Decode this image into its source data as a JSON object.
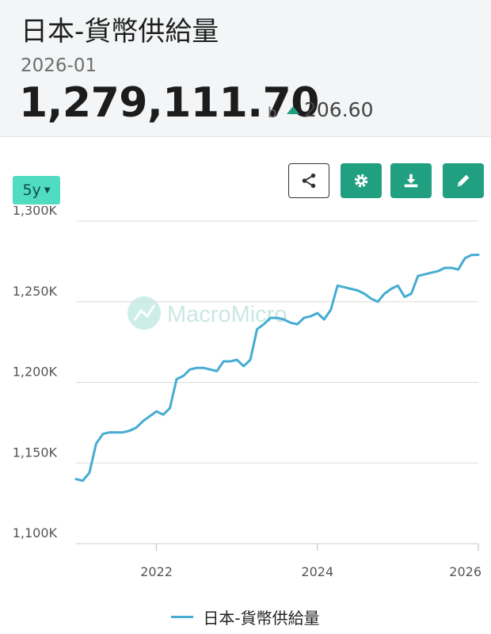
{
  "header": {
    "title": "日本-貨幣供給量",
    "date": "2026-01",
    "value": "1,279,111.70",
    "unit": "b",
    "change": "206.60"
  },
  "controls": {
    "range_label": "5y"
  },
  "icons": {
    "share": "share-icon",
    "settings": "gear-icon",
    "download": "download-icon",
    "edit": "pencil-icon",
    "range_caret": "caret-down-icon"
  },
  "colors": {
    "accent": "#20a080",
    "range_button": "#4fdcc1",
    "series_line": "#45acd2",
    "up_indicator": "#20a080"
  },
  "watermark": "MacroMicro",
  "chart_data": {
    "type": "line",
    "title": "",
    "xlabel": "",
    "ylabel": "",
    "ylim": [
      1100000,
      1300000
    ],
    "xlim": [
      "2021-01",
      "2026-01"
    ],
    "y_ticks": [
      1100000,
      1150000,
      1200000,
      1250000,
      1300000
    ],
    "y_tick_labels": [
      "1,100K",
      "1,150K",
      "1,200K",
      "1,250K",
      "1,300K"
    ],
    "x_ticks": [
      "2022-01",
      "2024-01",
      "2026-01"
    ],
    "x_tick_labels": [
      "2022",
      "2024",
      "2026"
    ],
    "grid": true,
    "legend": "bottom-center",
    "series": [
      {
        "name": "日本-貨幣供給量",
        "color": "#45acd2",
        "points": [
          [
            "2021-01",
            1140000
          ],
          [
            "2021-02",
            1139000
          ],
          [
            "2021-03",
            1144000
          ],
          [
            "2021-04",
            1162000
          ],
          [
            "2021-05",
            1168000
          ],
          [
            "2021-06",
            1169000
          ],
          [
            "2021-07",
            1169000
          ],
          [
            "2021-08",
            1169000
          ],
          [
            "2021-09",
            1170000
          ],
          [
            "2021-10",
            1172000
          ],
          [
            "2021-11",
            1176000
          ],
          [
            "2021-12",
            1179000
          ],
          [
            "2022-01",
            1182000
          ],
          [
            "2022-02",
            1180000
          ],
          [
            "2022-03",
            1184000
          ],
          [
            "2022-04",
            1202000
          ],
          [
            "2022-05",
            1204000
          ],
          [
            "2022-06",
            1208000
          ],
          [
            "2022-07",
            1209000
          ],
          [
            "2022-08",
            1209000
          ],
          [
            "2022-09",
            1208000
          ],
          [
            "2022-10",
            1207000
          ],
          [
            "2022-11",
            1213000
          ],
          [
            "2022-12",
            1213000
          ],
          [
            "2023-01",
            1214000
          ],
          [
            "2023-02",
            1210000
          ],
          [
            "2023-03",
            1214000
          ],
          [
            "2023-04",
            1233000
          ],
          [
            "2023-05",
            1236000
          ],
          [
            "2023-06",
            1240000
          ],
          [
            "2023-07",
            1240000
          ],
          [
            "2023-08",
            1239000
          ],
          [
            "2023-09",
            1237000
          ],
          [
            "2023-10",
            1236000
          ],
          [
            "2023-11",
            1240000
          ],
          [
            "2023-12",
            1241000
          ],
          [
            "2024-01",
            1243000
          ],
          [
            "2024-02",
            1239000
          ],
          [
            "2024-03",
            1245000
          ],
          [
            "2024-04",
            1260000
          ],
          [
            "2024-05",
            1259000
          ],
          [
            "2024-06",
            1258000
          ],
          [
            "2024-07",
            1257000
          ],
          [
            "2024-08",
            1255000
          ],
          [
            "2024-09",
            1252000
          ],
          [
            "2024-10",
            1250000
          ],
          [
            "2024-11",
            1255000
          ],
          [
            "2024-12",
            1258000
          ],
          [
            "2025-01",
            1260000
          ],
          [
            "2025-02",
            1253000
          ],
          [
            "2025-03",
            1255000
          ],
          [
            "2025-04",
            1266000
          ],
          [
            "2025-05",
            1267000
          ],
          [
            "2025-06",
            1268000
          ],
          [
            "2025-07",
            1269000
          ],
          [
            "2025-08",
            1271000
          ],
          [
            "2025-09",
            1271000
          ],
          [
            "2025-10",
            1270000
          ],
          [
            "2025-11",
            1277000
          ],
          [
            "2025-12",
            1279000
          ],
          [
            "2026-01",
            1279111.7
          ]
        ]
      }
    ]
  }
}
